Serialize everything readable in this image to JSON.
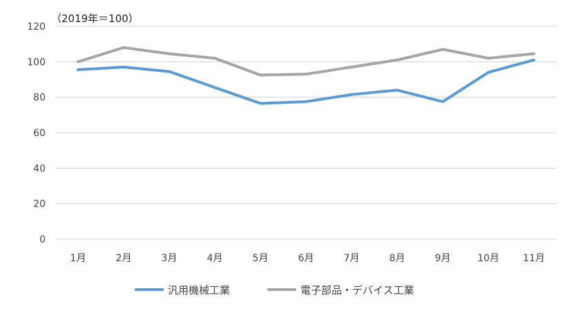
{
  "chart_data": {
    "type": "line",
    "unit_note": "（2019年＝100）",
    "categories": [
      "1月",
      "2月",
      "3月",
      "4月",
      "5月",
      "6月",
      "7月",
      "8月",
      "9月",
      "10月",
      "11月"
    ],
    "ylim": [
      0,
      120
    ],
    "yticks": [
      0,
      20,
      40,
      60,
      80,
      100,
      120
    ],
    "grid": true,
    "legend_position": "bottom",
    "series": [
      {
        "name": "汎用機械工業",
        "color": "#5B9BD5",
        "values": [
          95.5,
          97,
          94.5,
          85.5,
          76.5,
          77.5,
          81.5,
          84,
          77.5,
          94,
          101
        ]
      },
      {
        "name": "電子部品・デバイス工業",
        "color": "#A5A5A5",
        "values": [
          100,
          108,
          104.5,
          102,
          92.5,
          93,
          97,
          101,
          107,
          102,
          104.5
        ]
      }
    ]
  }
}
